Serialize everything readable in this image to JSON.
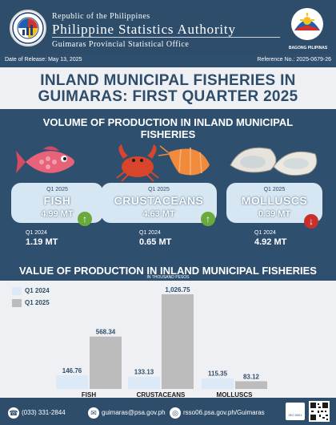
{
  "header": {
    "republic": "Republic of the Philippines",
    "agency": "Philippine Statistics Authority",
    "office": "Guimaras Provincial Statistical Office",
    "bp_text": "BAGONG PILIPINAS"
  },
  "release": {
    "date": "Date of Release: May 13, 2025",
    "reference": "Reference No.: 2025-0679-26"
  },
  "title": {
    "line1": "INLAND MUNICIPAL FISHERIES IN",
    "line2": "GUIMARAS: FIRST QUARTER 2025"
  },
  "volume": {
    "title_line1": "VOLUME OF PRODUCTION IN INLAND MUNICIPAL",
    "title_line2": "FISHERIES",
    "cards": [
      {
        "q1": "Q1 2025",
        "name": "FISH",
        "value": "4.99 MT",
        "trend": "up",
        "prev_label": "Q1 2024",
        "prev_value": "1.19 MT"
      },
      {
        "q1": "Q1 2025",
        "name": "CRUSTACEANS",
        "value": "4.63 MT",
        "trend": "up",
        "prev_label": "Q1 2024",
        "prev_value": "0.65 MT"
      },
      {
        "q1": "Q1 2025",
        "name": "MOLLUSCS",
        "value": "0.39 MT",
        "trend": "down",
        "prev_label": "Q1 2024",
        "prev_value": "4.92 MT"
      }
    ],
    "up_color": "#6aaa3a",
    "down_color": "#c9302c"
  },
  "chart_data": {
    "type": "bar",
    "title": "VALUE OF PRODUCTION IN INLAND MUNICIPAL FISHERIES",
    "subtitle": "IN THOUSAND PESOS",
    "categories": [
      "FISH",
      "CRUSTACEANS",
      "MOLLUSCS"
    ],
    "series": [
      {
        "name": "Q1 2024",
        "values": [
          146.76,
          133.13,
          115.35
        ],
        "labels": [
          "146.76",
          "133.13",
          "115.35"
        ],
        "color": "#dbeaf6"
      },
      {
        "name": "Q1 2025",
        "values": [
          568.34,
          1026.75,
          83.12
        ],
        "labels": [
          "568.34",
          "1,026.75",
          "83.12"
        ],
        "color": "#bcbcbc"
      }
    ],
    "legend": "top-left",
    "grid": false
  },
  "footer": {
    "phone": "(033) 331-2844",
    "email": "guimaras@psa.gov.ph",
    "web": "rsso06.psa.gov.ph/Guimaras",
    "iso": "ISO 9001"
  }
}
